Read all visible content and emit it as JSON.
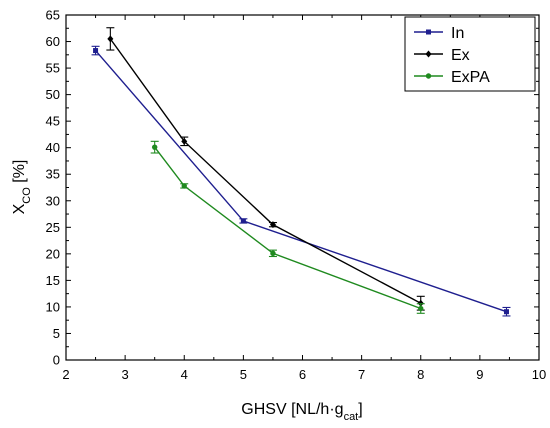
{
  "chart_data": {
    "type": "line",
    "xlabel": {
      "main": "GHSV [NL/h·g",
      "sub": "cat",
      "tail": "]"
    },
    "ylabel": {
      "main": "X",
      "sub": "CO",
      "tail": " [%]"
    },
    "xlim": [
      2,
      10
    ],
    "ylim": [
      0,
      65
    ],
    "xticks": [
      2,
      3,
      4,
      5,
      6,
      7,
      8,
      9,
      10
    ],
    "yticks": [
      0,
      5,
      10,
      15,
      20,
      25,
      30,
      35,
      40,
      45,
      50,
      55,
      60,
      65
    ],
    "legend_position": "top-right",
    "grid": false,
    "series": [
      {
        "name": "In",
        "color": "#1f1f8f",
        "marker": "square",
        "points": [
          {
            "x": 2.5,
            "y": 58.3,
            "err": 0.8
          },
          {
            "x": 5.0,
            "y": 26.2,
            "err": 0.4
          },
          {
            "x": 9.45,
            "y": 9.1,
            "err": 0.8
          }
        ]
      },
      {
        "name": "Ex",
        "color": "#000000",
        "marker": "diamond",
        "points": [
          {
            "x": 2.75,
            "y": 60.5,
            "err": 2.1
          },
          {
            "x": 4.0,
            "y": 41.2,
            "err": 0.8
          },
          {
            "x": 5.5,
            "y": 25.5,
            "err": 0.4
          },
          {
            "x": 8.0,
            "y": 10.7,
            "err": 1.3
          }
        ]
      },
      {
        "name": "ExPA",
        "color": "#1f8a1f",
        "marker": "circle",
        "points": [
          {
            "x": 3.5,
            "y": 40.1,
            "err": 1.1
          },
          {
            "x": 4.0,
            "y": 32.8,
            "err": 0.4
          },
          {
            "x": 5.5,
            "y": 20.1,
            "err": 0.6
          },
          {
            "x": 8.0,
            "y": 9.7,
            "err": 0.9
          }
        ]
      }
    ]
  }
}
